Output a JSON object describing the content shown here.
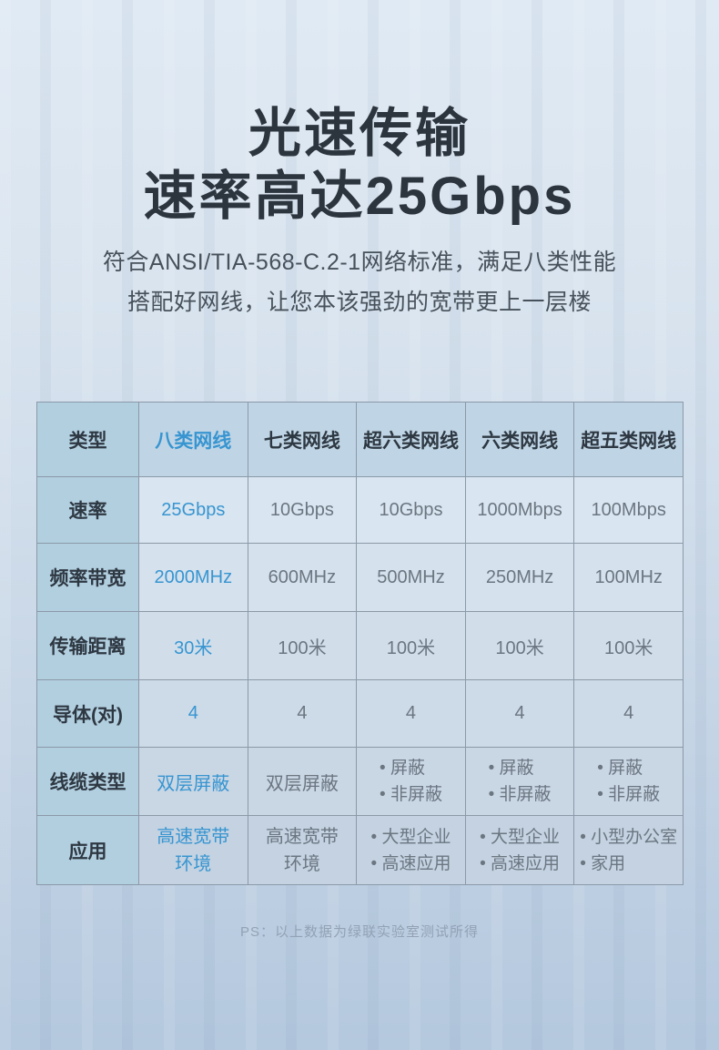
{
  "header": {
    "title_line1": "光速传输",
    "title_line2": "速率高达25Gbps",
    "subtitle_line1": "符合ANSI/TIA-568-C.2-1网络标准，满足八类性能",
    "subtitle_line2": "搭配好网线，让您本该强劲的宽带更上一层楼"
  },
  "table": {
    "columns": [
      "类型",
      "八类网线",
      "七类网线",
      "超六类网线",
      "六类网线",
      "超五类网线"
    ],
    "rows": [
      {
        "label": "速率",
        "cat8": "25Gbps",
        "cat7": "10Gbps",
        "cat6a": "10Gbps",
        "cat6": "1000Mbps",
        "cat5e": "100Mbps"
      },
      {
        "label": "频率带宽",
        "cat8": "2000MHz",
        "cat7": "600MHz",
        "cat6a": "500MHz",
        "cat6": "250MHz",
        "cat5e": "100MHz"
      },
      {
        "label": "传输距离",
        "cat8": "30米",
        "cat7": "100米",
        "cat6a": "100米",
        "cat6": "100米",
        "cat5e": "100米"
      },
      {
        "label": "导体(对)",
        "cat8": "4",
        "cat7": "4",
        "cat6a": "4",
        "cat6": "4",
        "cat5e": "4"
      },
      {
        "label": "线缆类型",
        "cat8": "双层屏蔽",
        "cat7": "双层屏蔽",
        "cat6a": [
          "屏蔽",
          "非屏蔽"
        ],
        "cat6": [
          "屏蔽",
          "非屏蔽"
        ],
        "cat5e": [
          "屏蔽",
          "非屏蔽"
        ]
      },
      {
        "label": "应用",
        "cat8": [
          "高速宽带",
          "环境"
        ],
        "cat7": [
          "高速宽带",
          "环境"
        ],
        "cat6a": [
          "大型企业",
          "高速应用"
        ],
        "cat6": [
          "大型企业",
          "高速应用"
        ],
        "cat5e": [
          "小型办公室",
          "家用"
        ]
      }
    ]
  },
  "footer": {
    "note": "PS：以上数据为绿联实验室测试所得"
  },
  "colors": {
    "accent": "#3795d1",
    "heading_text": "#2c343e",
    "body_text": "#6b7681",
    "background_top": "#e0eaf4",
    "background_bottom": "#b4c8de"
  }
}
